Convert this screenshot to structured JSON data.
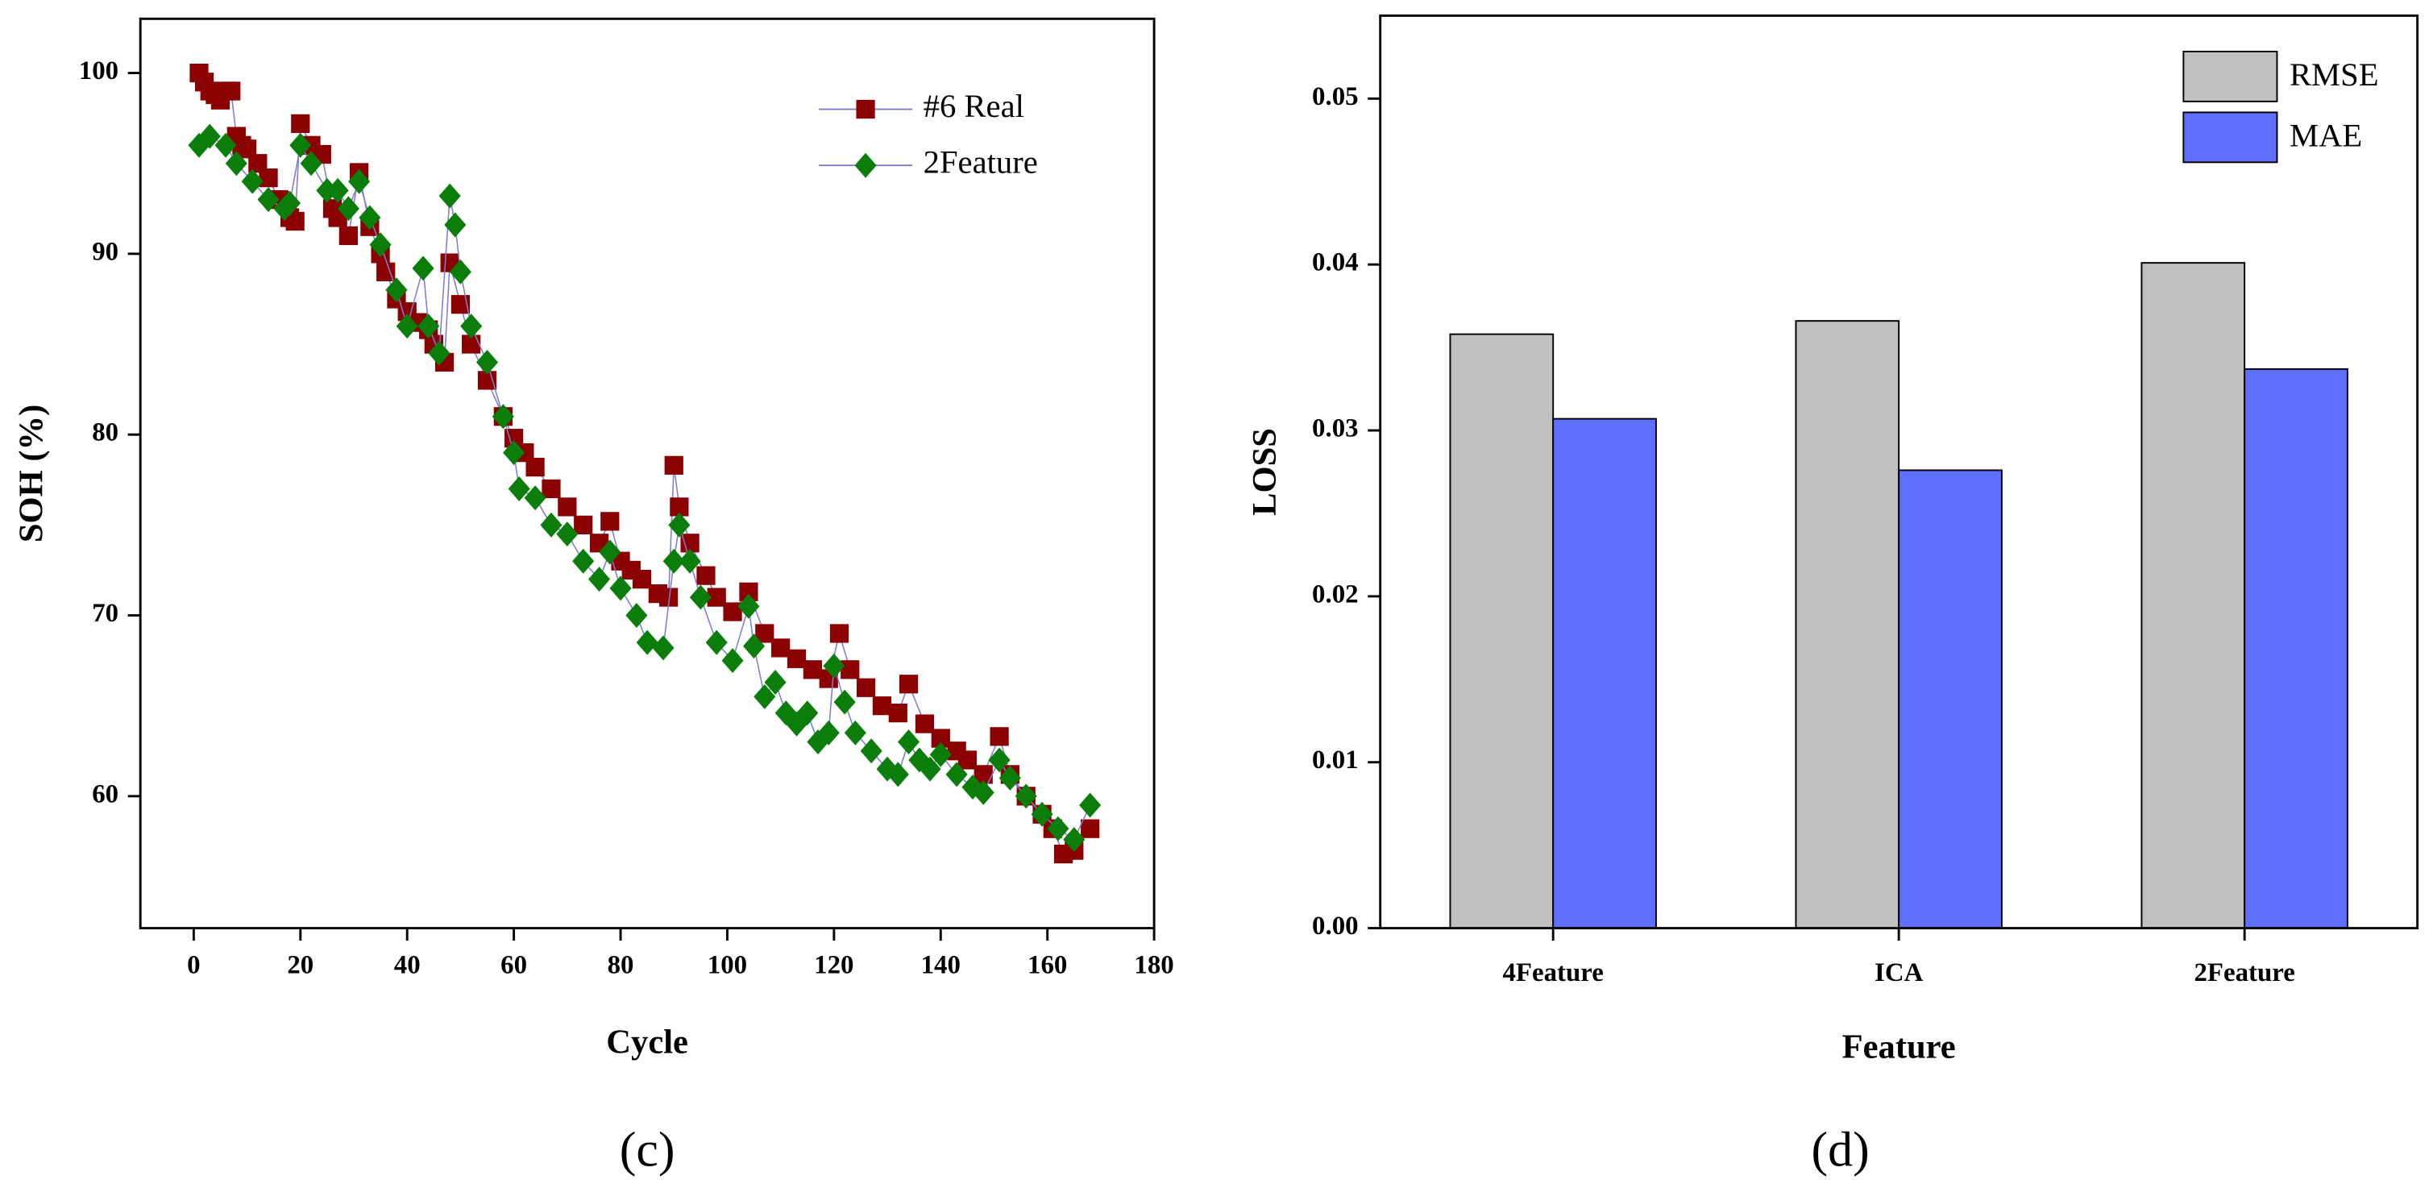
{
  "charts": [
    {
      "type": "scatter",
      "xlabel": "Cycle",
      "ylabel": "SOH (%)",
      "caption": "(c)",
      "xlim": [
        -10,
        180
      ],
      "ylim": [
        52.7,
        103
      ],
      "xticks": [
        0,
        20,
        40,
        60,
        80,
        100,
        120,
        140,
        160,
        180
      ],
      "yticks": [
        60,
        70,
        80,
        90,
        100
      ],
      "series": [
        {
          "name": "#6 Real",
          "color": "#8b0000",
          "marker": "square",
          "x": [
            1,
            2,
            3,
            4,
            5,
            6,
            7,
            8,
            9,
            10,
            12,
            14,
            16,
            18,
            19,
            20,
            22,
            24,
            26,
            27,
            29,
            31,
            33,
            35,
            36,
            38,
            40,
            42,
            44,
            45,
            47,
            48,
            50,
            52,
            55,
            58,
            60,
            62,
            64,
            67,
            70,
            73,
            76,
            78,
            80,
            82,
            84,
            87,
            89,
            90,
            91,
            93,
            96,
            98,
            101,
            104,
            107,
            110,
            113,
            116,
            119,
            121,
            123,
            126,
            129,
            132,
            134,
            137,
            140,
            143,
            145,
            148,
            151,
            153,
            156,
            159,
            161,
            163,
            165,
            168
          ],
          "values": [
            100,
            99.5,
            99,
            98.8,
            98.5,
            99,
            99,
            96.5,
            96,
            95.8,
            95,
            94.2,
            93,
            92,
            91.8,
            97.2,
            96,
            95.5,
            92.5,
            92,
            91,
            94.5,
            91.5,
            90,
            89,
            87.5,
            86.8,
            86.2,
            85.8,
            85,
            84,
            89.5,
            87.2,
            85,
            83,
            81,
            79.8,
            79,
            78.2,
            77,
            76,
            75,
            74,
            75.2,
            73,
            72.5,
            72,
            71.2,
            71,
            78.3,
            76,
            74,
            72.2,
            71,
            70.2,
            71.3,
            69,
            68.2,
            67.6,
            67,
            66.5,
            69,
            67,
            66,
            65,
            64.6,
            66.2,
            64,
            63.2,
            62.5,
            62,
            61.2,
            63.3,
            61.2,
            60,
            59,
            58.2,
            56.8,
            57,
            58.2
          ]
        },
        {
          "name": "2Feature",
          "color": "#0a7d0a",
          "marker": "diamond",
          "x": [
            1,
            3,
            6,
            8,
            11,
            14,
            17,
            18,
            20,
            22,
            25,
            27,
            29,
            31,
            33,
            35,
            38,
            40,
            43,
            44,
            46,
            48,
            49,
            50,
            52,
            55,
            58,
            60,
            61,
            64,
            67,
            70,
            73,
            76,
            78,
            80,
            83,
            85,
            88,
            90,
            91,
            93,
            95,
            98,
            101,
            104,
            105,
            107,
            109,
            111,
            113,
            115,
            117,
            119,
            120,
            122,
            124,
            127,
            130,
            132,
            134,
            136,
            138,
            140,
            143,
            146,
            148,
            151,
            153,
            156,
            159,
            162,
            165,
            168
          ],
          "values": [
            96,
            96.5,
            96,
            95,
            94,
            93,
            92.5,
            92.8,
            96,
            95,
            93.5,
            93.5,
            92.5,
            94,
            92,
            90.5,
            88,
            86,
            89.2,
            86,
            84.5,
            93.2,
            91.6,
            89,
            86,
            84,
            81,
            79,
            77,
            76.5,
            75,
            74.5,
            73,
            72,
            73.5,
            71.5,
            70,
            68.5,
            68.2,
            73,
            75,
            73,
            71,
            68.5,
            67.5,
            70.5,
            68.3,
            65.5,
            66.3,
            64.6,
            64,
            64.6,
            63,
            63.5,
            67.2,
            65.2,
            63.5,
            62.5,
            61.5,
            61.2,
            63,
            62,
            61.5,
            62.3,
            61.2,
            60.5,
            60.2,
            62,
            61,
            60,
            59,
            58.2,
            57.6,
            59.5
          ]
        }
      ]
    },
    {
      "type": "bar",
      "xlabel": "Feature",
      "ylabel": "LOSS",
      "caption": "(d)",
      "categories": [
        "4Feature",
        "ICA",
        "2Feature"
      ],
      "ylim": [
        0,
        0.055
      ],
      "yticks": [
        {
          "value": 0,
          "label": "0.00"
        },
        0.01,
        0.02,
        0.03,
        0.04,
        0.05
      ],
      "series": [
        {
          "name": "RMSE",
          "color": "#c0c0c0",
          "values": [
            0.0358,
            0.0366,
            0.0401
          ]
        },
        {
          "name": "MAE",
          "color": "#5f6fff",
          "values": [
            0.0307,
            0.0276,
            0.0337
          ]
        }
      ]
    }
  ]
}
